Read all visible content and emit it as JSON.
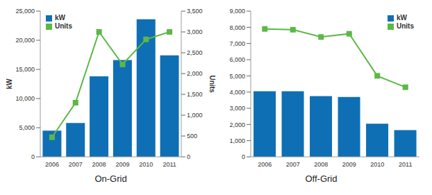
{
  "chart_data": [
    {
      "type": "bar",
      "title": "On-Grid",
      "categories": [
        "2006",
        "2007",
        "2008",
        "2009",
        "2010",
        "2011"
      ],
      "series": [
        {
          "name": "kW",
          "type": "bar",
          "color": "#0f6fb5",
          "values": [
            4500,
            5800,
            13800,
            16600,
            23600,
            17400
          ]
        },
        {
          "name": "Units",
          "type": "line",
          "color": "#5cb845",
          "marker": "square",
          "axis": "y2",
          "values": [
            470,
            1300,
            3000,
            2220,
            2820,
            3000
          ]
        }
      ],
      "ylabel": "kW",
      "y2label": "Units",
      "ylim": [
        0,
        25000
      ],
      "yticks": [
        0,
        {
          "value": 5000,
          "label": "5,000"
        },
        {
          "value": 10000,
          "label": "10,000"
        },
        {
          "value": 15000,
          "label": "15,000"
        },
        {
          "value": 20000,
          "label": "20,000"
        },
        {
          "value": 25000,
          "label": "25,000"
        }
      ],
      "y2lim": [
        0,
        3500
      ],
      "y2ticks": [
        0,
        500,
        {
          "value": 1000,
          "label": "1,000"
        },
        {
          "value": 1500,
          "label": "1,500"
        },
        {
          "value": 2000,
          "label": "2,000"
        },
        {
          "value": 2500,
          "label": "2,500"
        },
        {
          "value": 3000,
          "label": "3,000"
        },
        {
          "value": 3500,
          "label": "3,500"
        }
      ],
      "grid": false,
      "legend": "upper left"
    },
    {
      "type": "bar",
      "title": "Off-Grid",
      "categories": [
        "2006",
        "2007",
        "2008",
        "2009",
        "2010",
        "2011"
      ],
      "series": [
        {
          "name": "kW",
          "type": "bar",
          "color": "#0f6fb5",
          "values": [
            4050,
            4050,
            3750,
            3700,
            2050,
            1650
          ]
        },
        {
          "name": "Units",
          "type": "line",
          "color": "#5cb845",
          "marker": "square",
          "values": [
            7900,
            7850,
            7400,
            7600,
            5000,
            4300
          ]
        }
      ],
      "ylim": [
        0,
        9000
      ],
      "yticks": [
        0,
        {
          "value": 1000,
          "label": "1,000"
        },
        {
          "value": 2000,
          "label": "2,000"
        },
        {
          "value": 3000,
          "label": "3,000"
        },
        {
          "value": 4000,
          "label": "4,000"
        },
        {
          "value": 5000,
          "label": "5,000"
        },
        {
          "value": 6000,
          "label": "6,000"
        },
        {
          "value": 7000,
          "label": "7,000"
        },
        {
          "value": 8000,
          "label": "8,000"
        },
        {
          "value": 9000,
          "label": "9,000"
        }
      ],
      "grid": false,
      "legend": "upper right"
    }
  ]
}
